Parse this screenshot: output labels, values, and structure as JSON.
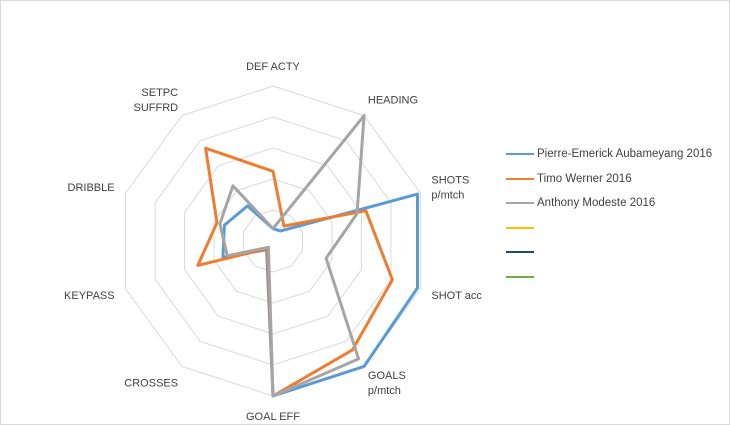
{
  "chart_data": {
    "type": "radar",
    "title": "",
    "axes": [
      "DEF ACTY",
      "HEADING",
      "SHOTS p/mtch",
      "SHOT acc",
      "GOALS p/mtch",
      "GOAL EFF",
      "CROSSES",
      "KEYPASS",
      "DRIBBLE",
      "SETPC SUFFRD"
    ],
    "axis_label_lines": [
      [
        "DEF ACTY"
      ],
      [
        "HEADING"
      ],
      [
        "SHOTS",
        "p/mtch"
      ],
      [
        "SHOT acc"
      ],
      [
        "GOALS",
        "p/mtch"
      ],
      [
        "GOAL EFF"
      ],
      [
        "CROSSES"
      ],
      [
        "KEYPASS"
      ],
      [
        "DRIBBLE"
      ],
      [
        "SETPC",
        "SUFFRD"
      ]
    ],
    "rlim": [
      0,
      1
    ],
    "gridlines": 5,
    "series": [
      {
        "name": "Pierre-Emerick Aubameyang 2016",
        "color": "#5b9bd5",
        "values": [
          0.08,
          0.08,
          0.98,
          0.98,
          1.0,
          1.0,
          0.07,
          0.34,
          0.33,
          0.28
        ]
      },
      {
        "name": "Timo Werner 2016",
        "color": "#ed7d31",
        "values": [
          0.45,
          0.12,
          0.63,
          0.81,
          0.87,
          1.0,
          0.06,
          0.51,
          0.38,
          0.74
        ]
      },
      {
        "name": "Anthony Modeste 2016",
        "color": "#a5a5a5",
        "values": [
          0.08,
          1.0,
          0.57,
          0.36,
          0.94,
          1.0,
          0.05,
          0.31,
          0.36,
          0.44
        ]
      },
      {
        "name": "",
        "color": "#ffc000",
        "values": []
      },
      {
        "name": "",
        "color": "#264478",
        "values": []
      },
      {
        "name": "",
        "color": "#70ad47",
        "values": []
      }
    ],
    "legend_position": "right"
  }
}
